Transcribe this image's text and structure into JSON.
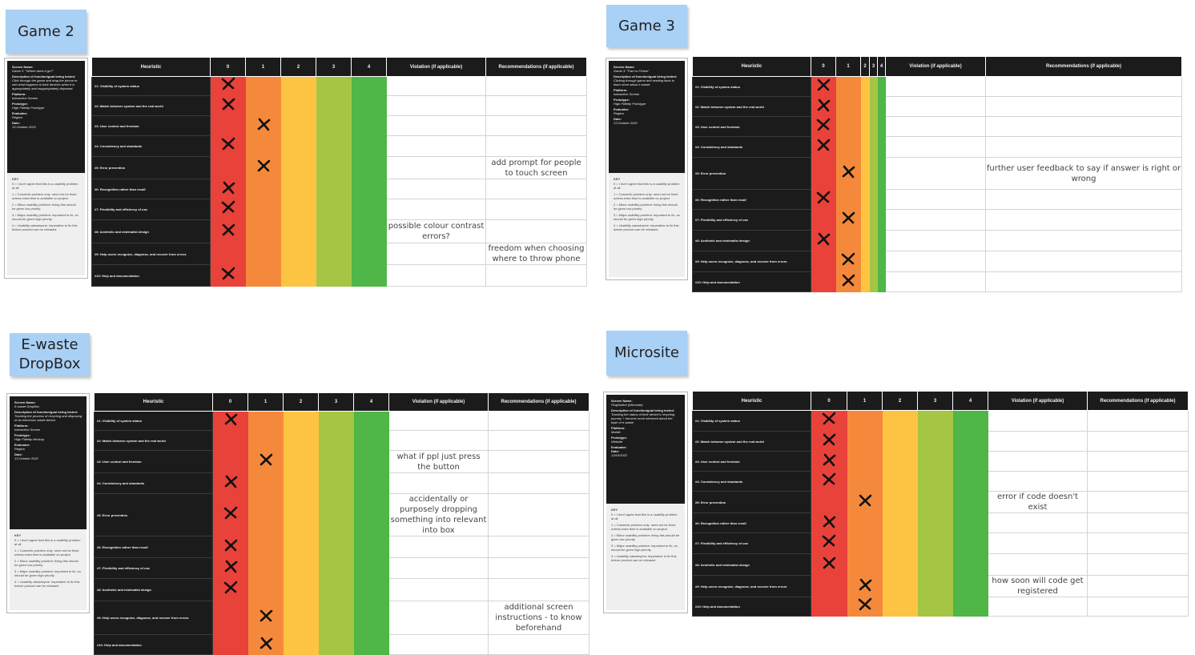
{
  "colors": {
    "score_0": "#e8423a",
    "score_1": "#f5893b",
    "score_2": "#fdc443",
    "score_3": "#a5c545",
    "score_4": "#4fb647",
    "sticky_note": "#a9d0f5",
    "header": "#1b1b1b"
  },
  "column_headers": {
    "heuristic": "Heuristic",
    "scores": [
      "0",
      "1",
      "2",
      "3",
      "4"
    ],
    "violation": "Violation (if applicable)",
    "recommendations": "Recommendations (if applicable)"
  },
  "heuristics": [
    "#1: Visibility of system status",
    "#2: Match between system and the real world",
    "#3: User control and freedom",
    "#4: Consistency and standards",
    "#5: Error prevention",
    "#6: Recognition rather than recall",
    "#7: Flexibility and efficiency of use",
    "#8: Aesthetic and minimalist design",
    "#9: Help users recognize, diagnose, and recover from errors",
    "#10: Help and documentation"
  ],
  "key": {
    "title": "KEY",
    "items": [
      "0 = I don't agree that this is a usability problem at all",
      "1 = Cosmetic problem only: need not be fixed unless extra time is available on project",
      "2 = Minor usability problem: fixing this should be given low priority",
      "3 = Major usability problem: important to fix, so should be given high priority",
      "4 = Usability catastrophe: imperative to fix this before product can be released"
    ]
  },
  "boards": [
    {
      "title": "Game 2",
      "info": [
        {
          "label": "Screen Name:",
          "value": "Game 2: \"Where does it go?\""
        },
        {
          "label": "Description of function/goal being tested:",
          "value": "Click through the game and drag the phone to see what happens to their devices when it is appropriately and inappropriately disposed."
        },
        {
          "label": "Platform:",
          "value": "Interactive Screen"
        },
        {
          "label": "Prototype:",
          "value": "High Fidelity Prototype"
        },
        {
          "label": "Evaluator:",
          "value": "Regina"
        },
        {
          "label": "Date:",
          "value": "13 October 2022"
        }
      ],
      "ratings": [
        0,
        0,
        1,
        0,
        1,
        0,
        0,
        0,
        null,
        0
      ],
      "violations": [
        "",
        "",
        "",
        "",
        "",
        "",
        "",
        "possible colour contrast errors?",
        "",
        ""
      ],
      "recommendations": [
        "",
        "",
        "",
        "",
        "add prompt for people to touch screen",
        "",
        "",
        "",
        "freedom when choosing where to throw phone",
        ""
      ]
    },
    {
      "title": "Game 3",
      "info": [
        {
          "label": "Screen Name:",
          "value": "Game 3: \"Fact or Fiction\""
        },
        {
          "label": "Description of function/goal being tested:",
          "value": "Clicking through game and reading facts to learn more about e-waste."
        },
        {
          "label": "Platform:",
          "value": "Interactive Screen"
        },
        {
          "label": "Prototype:",
          "value": "High Fidelity Prototype"
        },
        {
          "label": "Evaluator:",
          "value": "Regina"
        },
        {
          "label": "Date:",
          "value": "13 October 2022"
        }
      ],
      "ratings": [
        0,
        0,
        0,
        0,
        1,
        0,
        1,
        0,
        1,
        1
      ],
      "violations": [
        "",
        "",
        "",
        "",
        "",
        "",
        "",
        "",
        "",
        ""
      ],
      "recommendations": [
        "",
        "",
        "",
        "",
        "further user feedback to say if answer is right or wrong",
        "",
        "",
        "",
        "",
        ""
      ]
    },
    {
      "title": "E-waste DropBox",
      "info": [
        {
          "label": "Screen Name:",
          "value": "E-waste DropBox"
        },
        {
          "label": "Description of function/goal being tested:",
          "value": "Tracking the process of recycling and disposing of an electronic waste device"
        },
        {
          "label": "Platform:",
          "value": "Interactive Screen"
        },
        {
          "label": "Prototype:",
          "value": "High Fidelity Mockup"
        },
        {
          "label": "Evaluator:",
          "value": "Regina"
        },
        {
          "label": "Date:",
          "value": "13 October 2022"
        }
      ],
      "ratings": [
        0,
        null,
        1,
        0,
        0,
        0,
        0,
        0,
        1,
        1
      ],
      "violations": [
        "",
        "",
        "what if ppl just press the button",
        "",
        "accidentally or purposely dropping something into relevant into box",
        "",
        "",
        "",
        "",
        ""
      ],
      "recommendations": [
        "",
        "",
        "",
        "",
        "",
        "",
        "",
        "",
        "additional screen instructions - to know beforehand",
        ""
      ]
    },
    {
      "title": "Microsite",
      "info": [
        {
          "label": "Screen Name:",
          "value": "PlugSwitch (Microsite)"
        },
        {
          "label": "Description of function/goal being tested:",
          "value": "Tracking the status of their device's recycling journey + become more informed about the topic of e-waste"
        },
        {
          "label": "Platform:",
          "value": "Mobile"
        },
        {
          "label": "Prototype:",
          "value": "Website"
        },
        {
          "label": "Evaluator:",
          "value": ""
        },
        {
          "label": "Date:",
          "value": "13/10/2022"
        }
      ],
      "ratings": [
        0,
        0,
        0,
        0,
        1,
        0,
        0,
        0,
        1,
        1
      ],
      "violations": [
        "",
        "",
        "",
        "",
        "error if code doesn't exist",
        "",
        "",
        "",
        "how soon will code get registered",
        ""
      ],
      "recommendations": [
        "",
        "",
        "",
        "",
        "",
        "",
        "",
        "",
        "",
        ""
      ]
    }
  ]
}
